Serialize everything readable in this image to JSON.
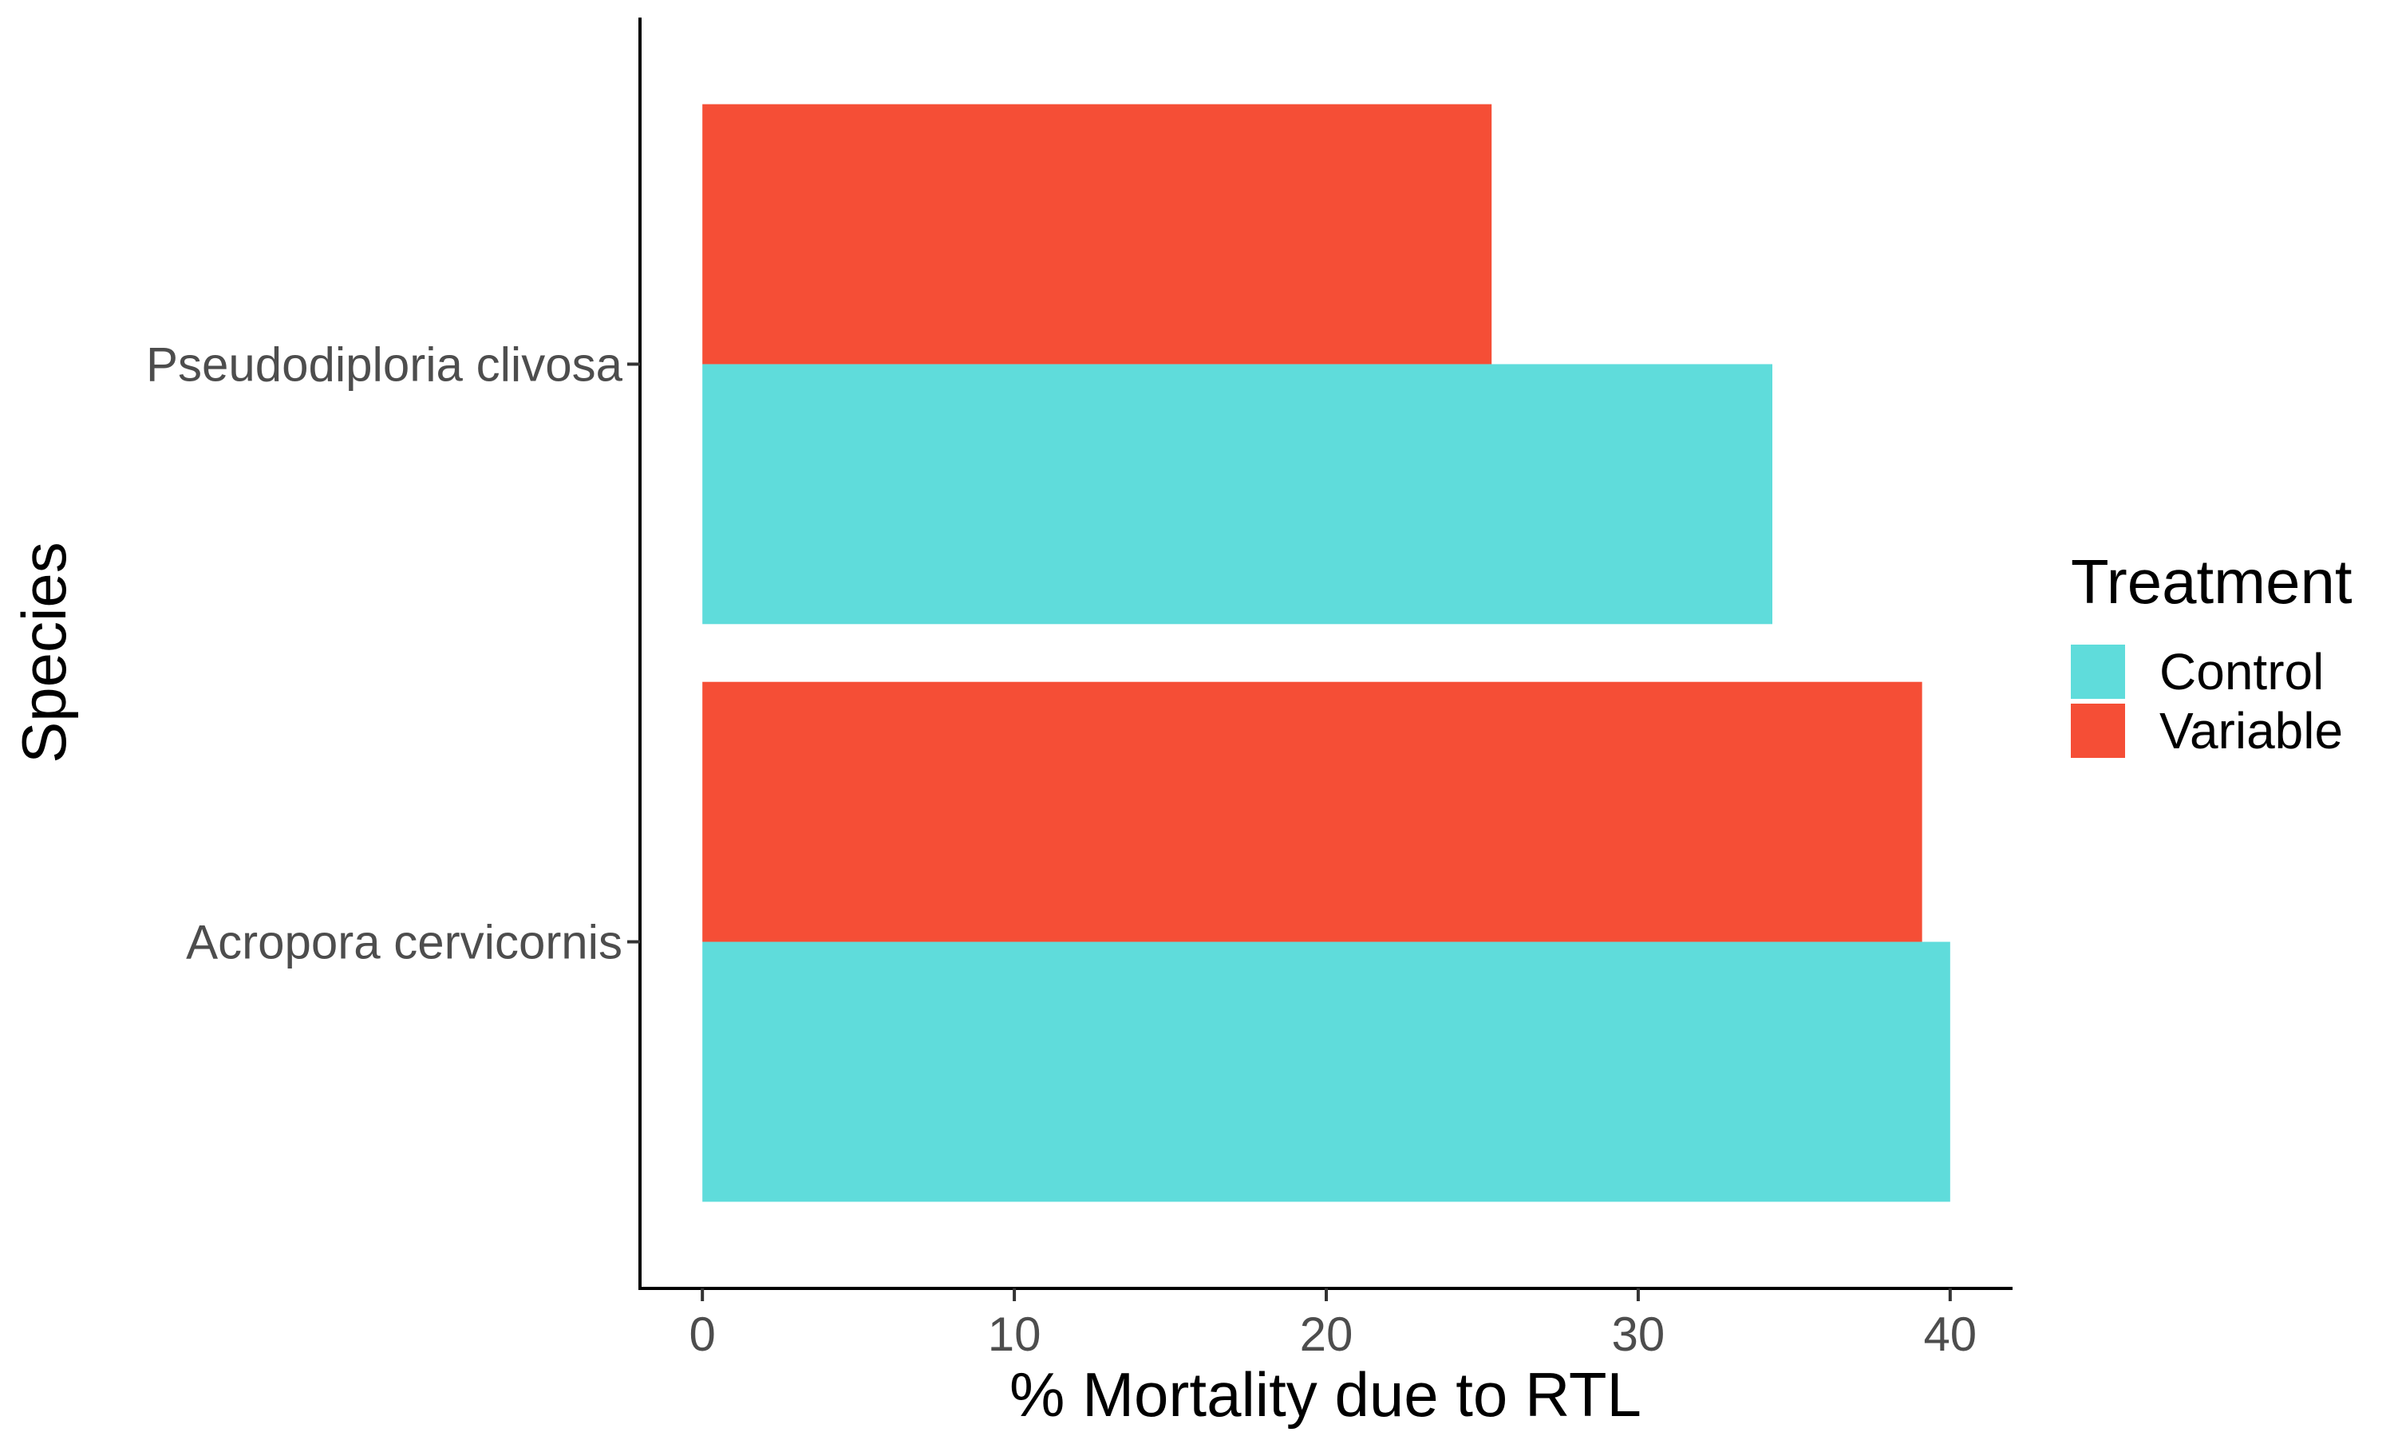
{
  "chart_data": {
    "type": "bar",
    "orientation": "horizontal",
    "categories": [
      "Acropora cervicornis",
      "Pseudodiploria clivosa"
    ],
    "series": [
      {
        "name": "Control",
        "color": "#5FDCDB",
        "values": [
          40.0,
          34.3
        ]
      },
      {
        "name": "Variable",
        "color": "#F54E36",
        "values": [
          39.1,
          25.3
        ]
      }
    ],
    "xlabel": "% Mortality due to RTL",
    "ylabel": "Species",
    "xlim": [
      -2,
      42
    ],
    "xticks": [
      0,
      10,
      20,
      30,
      40
    ],
    "legend": {
      "title": "Treatment",
      "position": "right"
    },
    "grid": false
  }
}
